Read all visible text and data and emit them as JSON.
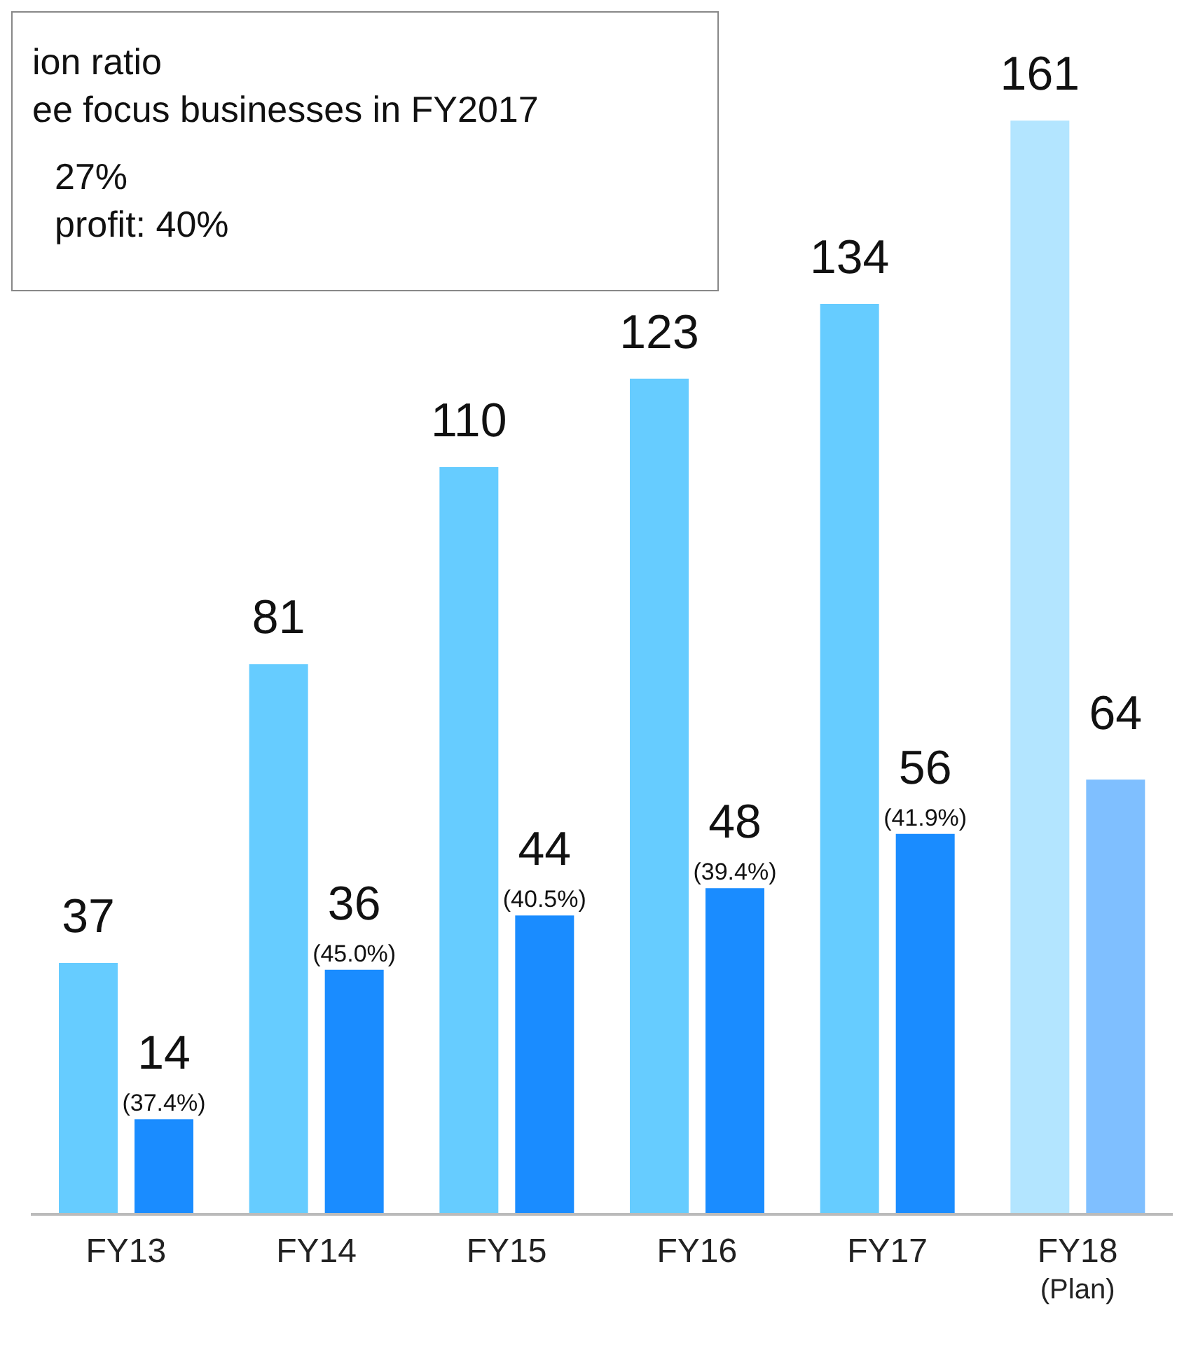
{
  "chart_data": {
    "type": "bar",
    "categories": [
      "FY13",
      "FY14",
      "FY15",
      "FY16",
      "FY17",
      "FY18\n(Plan)"
    ],
    "series": [
      {
        "colors": [
          "#66ccff",
          "#66ccff",
          "#66ccff",
          "#66ccff",
          "#66ccff",
          "#b3e5ff"
        ],
        "values": [
          37,
          81,
          110,
          123,
          134,
          161
        ]
      },
      {
        "colors": [
          "#1a8cff",
          "#1a8cff",
          "#1a8cff",
          "#1a8cff",
          "#1a8cff",
          "#7fbfff"
        ],
        "values": [
          14,
          36,
          44,
          48,
          56,
          64
        ]
      }
    ],
    "tick_labels": "x",
    "data_labels": true,
    "grid": false,
    "legend": false,
    "annotations": [
      "ion ratio",
      "ee focus businesses in FY2017",
      "27%",
      "profit: 40%",
      "(37.4%)",
      "(45.0%)",
      "(40.5%)",
      "(39.4%)",
      "(41.9%)"
    ]
  }
}
